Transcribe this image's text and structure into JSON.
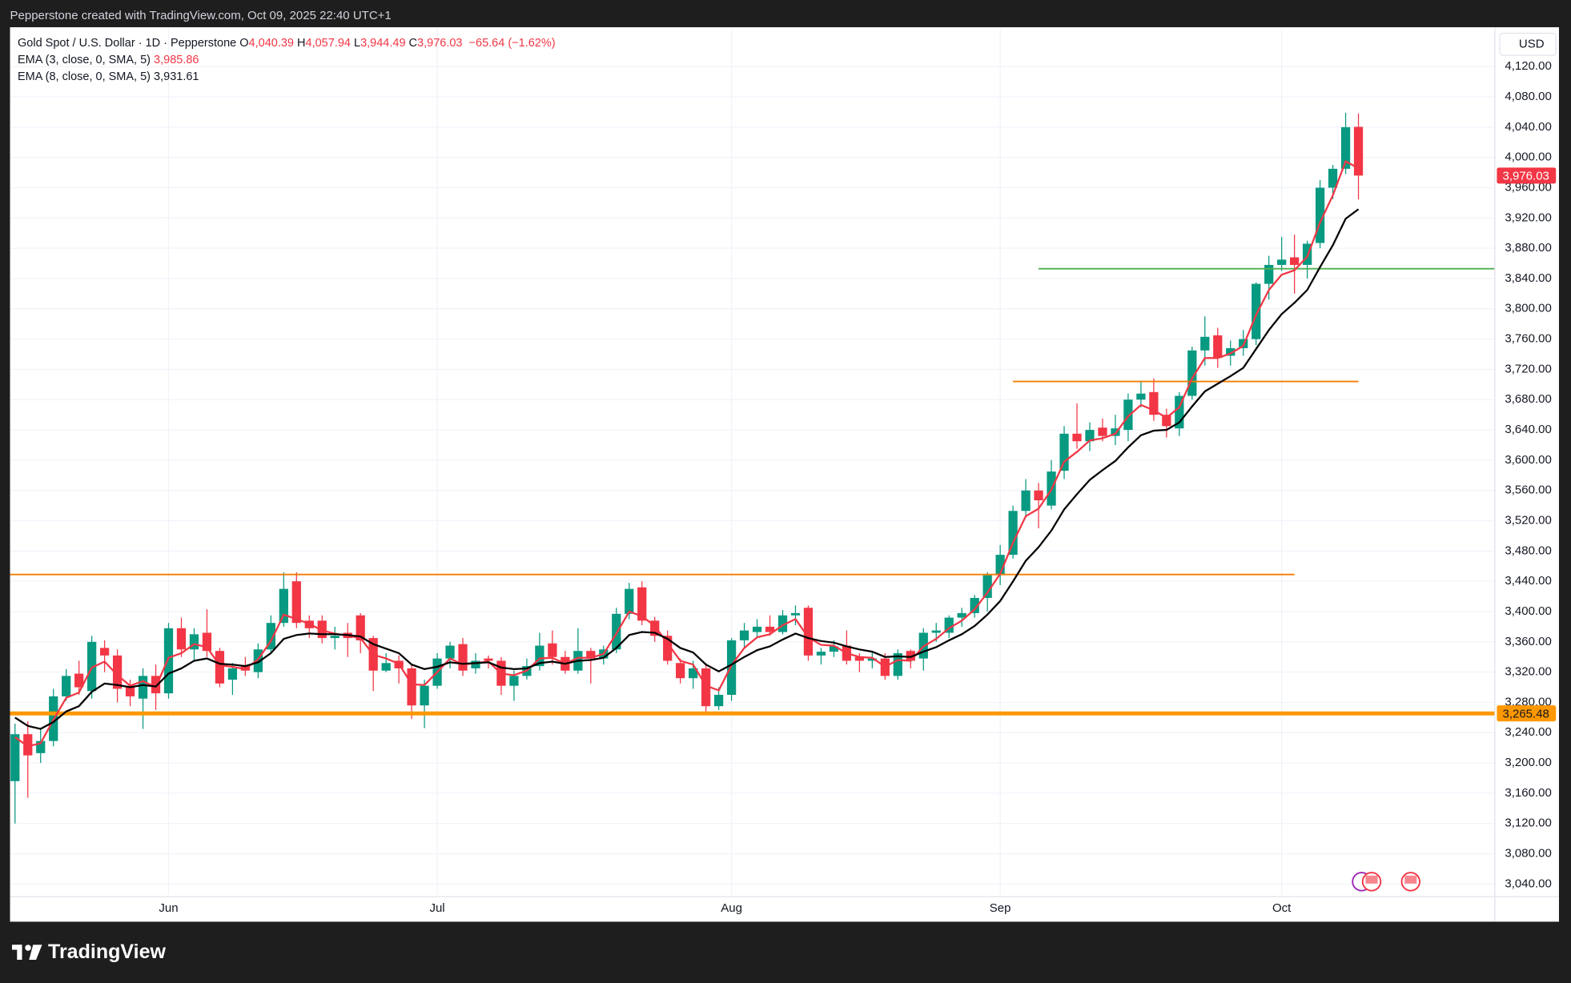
{
  "header": {
    "credit": "Pepperstone created with TradingView.com, Oct 09, 2025 22:40 UTC+1"
  },
  "footer": {
    "brand": "TradingView"
  },
  "legend": {
    "symbol": "Gold Spot / U.S. Dollar · 1D · Pepperstone",
    "ohlc": [
      {
        "key": "O",
        "value": "4,040.39"
      },
      {
        "key": "H",
        "value": "4,057.94"
      },
      {
        "key": "L",
        "value": "3,944.49"
      },
      {
        "key": "C",
        "value": "3,976.03"
      }
    ],
    "change": "−65.64 (−1.62%)"
  },
  "chart_data": {
    "type": "candlestick",
    "currency": "USD",
    "categories": [
      null,
      null,
      null,
      null,
      null,
      null,
      null,
      null,
      null,
      null,
      null,
      null,
      "Jun",
      null,
      null,
      null,
      null,
      null,
      null,
      null,
      null,
      null,
      null,
      null,
      null,
      null,
      null,
      null,
      null,
      null,
      null,
      null,
      null,
      "Jul",
      null,
      null,
      null,
      null,
      null,
      null,
      null,
      null,
      null,
      null,
      null,
      null,
      null,
      null,
      null,
      null,
      null,
      null,
      null,
      null,
      null,
      null,
      "Aug",
      null,
      null,
      null,
      null,
      null,
      null,
      null,
      null,
      null,
      null,
      null,
      null,
      null,
      null,
      null,
      null,
      null,
      null,
      null,
      null,
      "Sep",
      null,
      null,
      null,
      null,
      null,
      null,
      null,
      null,
      null,
      null,
      null,
      null,
      null,
      null,
      null,
      null,
      null,
      null,
      null,
      null,
      null,
      "Oct",
      null,
      null,
      null,
      null,
      null,
      null
    ],
    "open": [
      3176,
      3238,
      3213,
      3229,
      3288,
      3318,
      3295,
      3352,
      3342,
      3302,
      3285,
      3315,
      3292,
      3378,
      3350,
      3372,
      3348,
      3310,
      3328,
      3320,
      3350,
      3385,
      3440,
      3388,
      3388,
      3365,
      3372,
      3395,
      3365,
      3322,
      3335,
      3325,
      3276,
      3302,
      3338,
      3357,
      3325,
      3338,
      3335,
      3302,
      3315,
      3328,
      3358,
      3340,
      3322,
      3348,
      3338,
      3350,
      3397,
      3432,
      3388,
      3368,
      3332,
      3312,
      3325,
      3275,
      3290,
      3362,
      3373,
      3380,
      3373,
      3395,
      3405,
      3342,
      3347,
      3355,
      3340,
      3335,
      3338,
      3315,
      3348,
      3338,
      3372,
      3372,
      3392,
      3398,
      3418,
      3448,
      3475,
      3533,
      3560,
      3540,
      3586,
      3635,
      3625,
      3643,
      3632,
      3640,
      3680,
      3690,
      3660,
      3642,
      3685,
      3745,
      3765,
      3738,
      3748,
      3760,
      3833,
      3858,
      3868,
      3858,
      3887,
      3960,
      3985,
      4040.39
    ],
    "high": [
      3252,
      3255,
      3245,
      3298,
      3324,
      3335,
      3368,
      3362,
      3350,
      3310,
      3325,
      3330,
      3385,
      3392,
      3378,
      3403,
      3352,
      3332,
      3340,
      3358,
      3395,
      3452,
      3452,
      3395,
      3395,
      3380,
      3385,
      3398,
      3368,
      3345,
      3342,
      3330,
      3310,
      3345,
      3360,
      3365,
      3345,
      3342,
      3340,
      3322,
      3338,
      3372,
      3375,
      3348,
      3378,
      3352,
      3355,
      3405,
      3438,
      3440,
      3393,
      3375,
      3338,
      3335,
      3332,
      3300,
      3365,
      3385,
      3390,
      3395,
      3402,
      3408,
      3408,
      3352,
      3362,
      3375,
      3345,
      3348,
      3345,
      3350,
      3350,
      3378,
      3385,
      3395,
      3405,
      3422,
      3452,
      3488,
      3540,
      3575,
      3570,
      3600,
      3645,
      3675,
      3650,
      3655,
      3660,
      3688,
      3705,
      3708,
      3668,
      3690,
      3750,
      3790,
      3775,
      3758,
      3772,
      3835,
      3870,
      3895,
      3898,
      3890,
      3970,
      3990,
      4059,
      4057.94
    ],
    "low": [
      3120,
      3154,
      3200,
      3222,
      3282,
      3290,
      3285,
      3320,
      3280,
      3275,
      3245,
      3270,
      3285,
      3340,
      3335,
      3340,
      3300,
      3290,
      3315,
      3312,
      3345,
      3380,
      3378,
      3365,
      3358,
      3350,
      3340,
      3345,
      3295,
      3320,
      3305,
      3258,
      3246,
      3298,
      3325,
      3315,
      3318,
      3325,
      3290,
      3282,
      3310,
      3322,
      3330,
      3318,
      3318,
      3305,
      3330,
      3345,
      3390,
      3382,
      3360,
      3330,
      3305,
      3298,
      3268,
      3270,
      3282,
      3352,
      3366,
      3368,
      3370,
      3382,
      3335,
      3330,
      3340,
      3330,
      3320,
      3325,
      3310,
      3310,
      3325,
      3322,
      3360,
      3365,
      3380,
      3392,
      3400,
      3435,
      3470,
      3525,
      3510,
      3535,
      3575,
      3615,
      3612,
      3625,
      3620,
      3625,
      3670,
      3652,
      3630,
      3632,
      3680,
      3725,
      3722,
      3725,
      3738,
      3752,
      3812,
      3850,
      3820,
      3840,
      3880,
      3945,
      3978,
      3944.49
    ],
    "close": [
      3238,
      3210,
      3229,
      3288,
      3315,
      3300,
      3360,
      3342,
      3298,
      3288,
      3315,
      3292,
      3378,
      3350,
      3370,
      3348,
      3305,
      3325,
      3322,
      3350,
      3385,
      3430,
      3385,
      3378,
      3365,
      3368,
      3365,
      3362,
      3322,
      3332,
      3325,
      3276,
      3302,
      3338,
      3355,
      3322,
      3335,
      3335,
      3302,
      3315,
      3328,
      3355,
      3340,
      3322,
      3348,
      3338,
      3350,
      3397,
      3430,
      3388,
      3368,
      3335,
      3312,
      3325,
      3275,
      3290,
      3362,
      3375,
      3380,
      3373,
      3395,
      3398,
      3342,
      3347,
      3354,
      3335,
      3335,
      3338,
      3315,
      3345,
      3335,
      3372,
      3375,
      3392,
      3398,
      3418,
      3448,
      3475,
      3533,
      3560,
      3547,
      3585,
      3635,
      3625,
      3640,
      3632,
      3642,
      3680,
      3688,
      3660,
      3645,
      3685,
      3745,
      3763,
      3735,
      3748,
      3760,
      3833,
      3858,
      3865,
      3858,
      3886,
      3960,
      3985,
      4040,
      3976.03
    ],
    "up_color": "#089981",
    "down_color": "#f23645",
    "series": [
      {
        "name": "EMA (3, close, 0, SMA, 5)",
        "legend_value": "3,985.86",
        "color": "#f23645",
        "values": [
          3234,
          3222,
          3226,
          3257,
          3286,
          3293,
          3326,
          3334,
          3316,
          3302,
          3308,
          3300,
          3339,
          3345,
          3357,
          3353,
          3329,
          3327,
          3324,
          3337,
          3361,
          3396,
          3390,
          3384,
          3375,
          3371,
          3368,
          3365,
          3343,
          3338,
          3331,
          3304,
          3303,
          3320,
          3338,
          3330,
          3332,
          3334,
          3318,
          3316,
          3322,
          3338,
          3339,
          3331,
          3339,
          3339,
          3344,
          3371,
          3400,
          3394,
          3381,
          3358,
          3335,
          3330,
          3302,
          3296,
          3329,
          3352,
          3366,
          3370,
          3382,
          3390,
          3366,
          3356,
          3355,
          3345,
          3340,
          3339,
          3327,
          3336,
          3335,
          3354,
          3364,
          3378,
          3388,
          3403,
          3425,
          3450,
          3491,
          3526,
          3536,
          3561,
          3598,
          3611,
          3626,
          3629,
          3635,
          3658,
          3673,
          3666,
          3656,
          3670,
          3708,
          3735,
          3735,
          3741,
          3751,
          3792,
          3825,
          3845,
          3851,
          3869,
          3914,
          3950,
          3995,
          3985.86
        ]
      },
      {
        "name": "EMA (8, close, 0, SMA, 5)",
        "legend_value": "3,931.61",
        "color": "#000000",
        "values": [
          3260,
          3249,
          3245,
          3254,
          3268,
          3275,
          3294,
          3305,
          3303,
          3300,
          3303,
          3301,
          3318,
          3325,
          3335,
          3338,
          3331,
          3330,
          3328,
          3333,
          3345,
          3364,
          3369,
          3371,
          3370,
          3370,
          3369,
          3367,
          3357,
          3351,
          3345,
          3330,
          3324,
          3327,
          3333,
          3331,
          3332,
          3333,
          3326,
          3324,
          3325,
          3332,
          3334,
          3331,
          3335,
          3336,
          3339,
          3352,
          3369,
          3373,
          3372,
          3364,
          3352,
          3346,
          3330,
          3321,
          3330,
          3340,
          3349,
          3354,
          3363,
          3371,
          3365,
          3361,
          3359,
          3354,
          3350,
          3347,
          3340,
          3341,
          3340,
          3347,
          3353,
          3362,
          3370,
          3381,
          3396,
          3414,
          3440,
          3467,
          3485,
          3507,
          3535,
          3555,
          3574,
          3587,
          3599,
          3617,
          3633,
          3639,
          3640,
          3650,
          3671,
          3691,
          3701,
          3711,
          3722,
          3747,
          3772,
          3793,
          3808,
          3825,
          3855,
          3884,
          3919,
          3931.61
        ]
      }
    ],
    "hlines": [
      {
        "value": 3853,
        "color": "#4caf50"
      },
      {
        "value": 3704,
        "color": "#f57c00"
      },
      {
        "value": 3449,
        "color": "#f57c00"
      },
      {
        "value": 3265.48,
        "color": "#ff9800",
        "label": "3,265.48"
      }
    ],
    "price_labels": [
      {
        "value": 3976.03,
        "label": "3,976.03",
        "color": "#f23645"
      }
    ],
    "ylim": [
      3026,
      4172
    ],
    "yticks": [
      {
        "value": 3040,
        "label": "3,040.00"
      },
      {
        "value": 3080,
        "label": "3,080.00"
      },
      {
        "value": 3120,
        "label": "3,120.00"
      },
      {
        "value": 3160,
        "label": "3,160.00"
      },
      {
        "value": 3200,
        "label": "3,200.00"
      },
      {
        "value": 3240,
        "label": "3,240.00"
      },
      {
        "value": 3280,
        "label": "3,280.00"
      },
      {
        "value": 3320,
        "label": "3,320.00"
      },
      {
        "value": 3360,
        "label": "3,360.00"
      },
      {
        "value": 3400,
        "label": "3,400.00"
      },
      {
        "value": 3440,
        "label": "3,440.00"
      },
      {
        "value": 3480,
        "label": "3,480.00"
      },
      {
        "value": 3520,
        "label": "3,520.00"
      },
      {
        "value": 3560,
        "label": "3,560.00"
      },
      {
        "value": 3600,
        "label": "3,600.00"
      },
      {
        "value": 3640,
        "label": "3,640.00"
      },
      {
        "value": 3680,
        "label": "3,680.00"
      },
      {
        "value": 3720,
        "label": "3,720.00"
      },
      {
        "value": 3760,
        "label": "3,760.00"
      },
      {
        "value": 3800,
        "label": "3,800.00"
      },
      {
        "value": 3840,
        "label": "3,840.00"
      },
      {
        "value": 3880,
        "label": "3,880.00"
      },
      {
        "value": 3920,
        "label": "3,920.00"
      },
      {
        "value": 3960,
        "label": "3,960.00"
      },
      {
        "value": 4000,
        "label": "4,000.00"
      },
      {
        "value": 4040,
        "label": "4,040.00"
      },
      {
        "value": 4080,
        "label": "4,080.00"
      },
      {
        "value": 4120,
        "label": "4,120.00"
      }
    ],
    "grid": true
  }
}
